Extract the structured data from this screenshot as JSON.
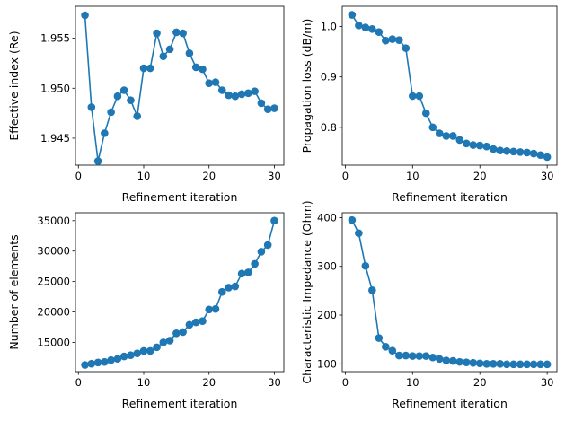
{
  "chart_data": [
    {
      "type": "line",
      "xlabel": "Refinement iteration",
      "ylabel": "Effective index (Re)",
      "xlim": [
        -0.45,
        31.45
      ],
      "ylim": [
        1.9423,
        1.9582
      ],
      "xticks": [
        0,
        10,
        20,
        30
      ],
      "yticks": [
        1.945,
        1.95,
        1.955
      ],
      "ytick_labels": [
        "1.945",
        "1.950",
        "1.955"
      ],
      "color": "#1f77b4",
      "markers": true,
      "grid": false,
      "series": [
        {
          "x": [
            1,
            2,
            3,
            4,
            5,
            6,
            7,
            8,
            9,
            10,
            11,
            12,
            13,
            14,
            15,
            16,
            17,
            18,
            19,
            20,
            21,
            22,
            23,
            24,
            25,
            26,
            27,
            28,
            29,
            30
          ],
          "values": [
            1.9573,
            1.9481,
            1.9427,
            1.9455,
            1.9476,
            1.9492,
            1.9498,
            1.9488,
            1.9472,
            1.952,
            1.952,
            1.9555,
            1.9532,
            1.9539,
            1.9556,
            1.9555,
            1.9535,
            1.9521,
            1.9519,
            1.9505,
            1.9506,
            1.9498,
            1.9493,
            1.9492,
            1.9494,
            1.9495,
            1.9497,
            1.9485,
            1.9479,
            1.948
          ]
        }
      ]
    },
    {
      "type": "line",
      "xlabel": "Refinement iteration",
      "ylabel": "Propagation loss (dB/m)",
      "xlim": [
        -0.45,
        31.45
      ],
      "ylim": [
        0.725,
        1.04
      ],
      "xticks": [
        0,
        10,
        20,
        30
      ],
      "yticks": [
        0.8,
        0.9,
        1.0
      ],
      "ytick_labels": [
        "0.8",
        "0.9",
        "1.0"
      ],
      "color": "#1f77b4",
      "markers": true,
      "grid": false,
      "series": [
        {
          "x": [
            1,
            2,
            3,
            4,
            5,
            6,
            7,
            8,
            9,
            10,
            11,
            12,
            13,
            14,
            15,
            16,
            17,
            18,
            19,
            20,
            21,
            22,
            23,
            24,
            25,
            26,
            27,
            28,
            29,
            30
          ],
          "values": [
            1.023,
            1.002,
            0.998,
            0.995,
            0.989,
            0.972,
            0.975,
            0.973,
            0.957,
            0.862,
            0.862,
            0.828,
            0.8,
            0.788,
            0.783,
            0.783,
            0.775,
            0.768,
            0.765,
            0.764,
            0.762,
            0.757,
            0.754,
            0.753,
            0.752,
            0.751,
            0.75,
            0.748,
            0.745,
            0.741
          ]
        }
      ]
    },
    {
      "type": "line",
      "xlabel": "Refinement iteration",
      "ylabel": "Number of elements",
      "xlim": [
        -0.45,
        31.45
      ],
      "ylim": [
        10200,
        36300
      ],
      "xticks": [
        0,
        10,
        20,
        30
      ],
      "yticks": [
        15000,
        20000,
        25000,
        30000,
        35000
      ],
      "ytick_labels": [
        "15000",
        "20000",
        "25000",
        "30000",
        "35000"
      ],
      "color": "#1f77b4",
      "markers": true,
      "grid": false,
      "series": [
        {
          "x": [
            1,
            2,
            3,
            4,
            5,
            6,
            7,
            8,
            9,
            10,
            11,
            12,
            13,
            14,
            15,
            16,
            17,
            18,
            19,
            20,
            21,
            22,
            23,
            24,
            25,
            26,
            27,
            28,
            29,
            30
          ],
          "values": [
            11300,
            11500,
            11700,
            11800,
            12100,
            12300,
            12700,
            12900,
            13200,
            13600,
            13600,
            14200,
            15000,
            15300,
            16500,
            16700,
            17900,
            18300,
            18500,
            20400,
            20500,
            23300,
            24000,
            24200,
            26300,
            26500,
            27900,
            29900,
            31000,
            35000
          ]
        }
      ]
    },
    {
      "type": "line",
      "xlabel": "Refinement iteration",
      "ylabel": "Characteristic Impedance (Ohm)",
      "xlim": [
        -0.45,
        31.45
      ],
      "ylim": [
        84,
        410
      ],
      "xticks": [
        0,
        10,
        20,
        30
      ],
      "yticks": [
        100,
        200,
        300,
        400
      ],
      "ytick_labels": [
        "100",
        "200",
        "300",
        "400"
      ],
      "color": "#1f77b4",
      "markers": true,
      "grid": false,
      "series": [
        {
          "x": [
            1,
            2,
            3,
            4,
            5,
            6,
            7,
            8,
            9,
            10,
            11,
            12,
            13,
            14,
            15,
            16,
            17,
            18,
            19,
            20,
            21,
            22,
            23,
            24,
            25,
            26,
            27,
            28,
            29,
            30
          ],
          "values": [
            395,
            368,
            301,
            251,
            153,
            135,
            127,
            117,
            117,
            116,
            116,
            116,
            113,
            110,
            107,
            106,
            104,
            103,
            102,
            101,
            100,
            100,
            100,
            99,
            99,
            99,
            99,
            99,
            99,
            99
          ]
        }
      ]
    }
  ]
}
